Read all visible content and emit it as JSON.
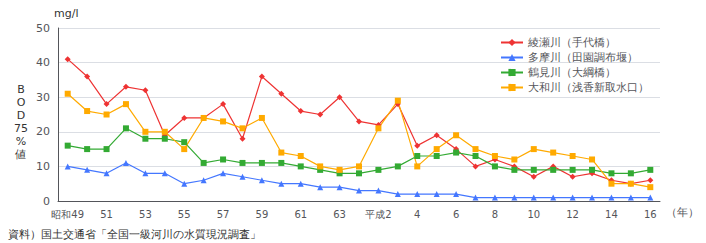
{
  "chart_data": {
    "type": "line",
    "xlabel": "（年）",
    "ylabel": "B\nO\nD\n75\n%\n値",
    "annotations": [
      "mg/l",
      "資料）国土交通省「全国一級河川の水質現況調査」"
    ],
    "categories": [
      "昭和49",
      null,
      "51",
      null,
      "53",
      null,
      "55",
      null,
      "57",
      null,
      "59",
      null,
      "61",
      null,
      "63",
      null,
      "平成2",
      null,
      "4",
      null,
      "6",
      null,
      "8",
      null,
      "10",
      null,
      "12",
      null,
      "14",
      null,
      "16"
    ],
    "series": [
      {
        "name": "綾瀬川（手代橋）",
        "color": "#EE3333",
        "marker": "diamond",
        "values": [
          41,
          36,
          28,
          33,
          32,
          19,
          24,
          24,
          28,
          18,
          36,
          31,
          26,
          25,
          30,
          23,
          22,
          28,
          16,
          19,
          15,
          10,
          12,
          10,
          7,
          10,
          7,
          8,
          6,
          5,
          6
        ]
      },
      {
        "name": "多摩川（田園調布堰）",
        "color": "#4477FF",
        "marker": "triangle",
        "values": [
          10,
          9,
          8,
          11,
          8,
          8,
          5,
          6,
          8,
          7,
          6,
          5,
          5,
          4,
          4,
          3,
          3,
          2,
          2,
          2,
          2,
          1,
          1,
          1,
          1,
          1,
          1,
          1,
          1,
          1,
          1
        ]
      },
      {
        "name": "鶴見川（大綱橋）",
        "color": "#33AA33",
        "marker": "square",
        "values": [
          16,
          15,
          15,
          21,
          18,
          18,
          17,
          11,
          12,
          11,
          11,
          11,
          10,
          9,
          8,
          8,
          9,
          10,
          13,
          13,
          14,
          13,
          10,
          9,
          9,
          9,
          9,
          9,
          8,
          8,
          9
        ]
      },
      {
        "name": "大和川（浅香新取水口）",
        "color": "#FFAA00",
        "marker": "square",
        "values": [
          31,
          26,
          25,
          28,
          20,
          20,
          15,
          24,
          23,
          21,
          24,
          14,
          13,
          10,
          9,
          10,
          21,
          29,
          10,
          15,
          19,
          15,
          13,
          12,
          15,
          14,
          13,
          12,
          5,
          5,
          4
        ]
      }
    ],
    "ylim": [
      0,
      50
    ],
    "yticks": [
      0,
      10,
      20,
      30,
      40,
      50
    ],
    "grid": true,
    "legend": "upper right"
  }
}
